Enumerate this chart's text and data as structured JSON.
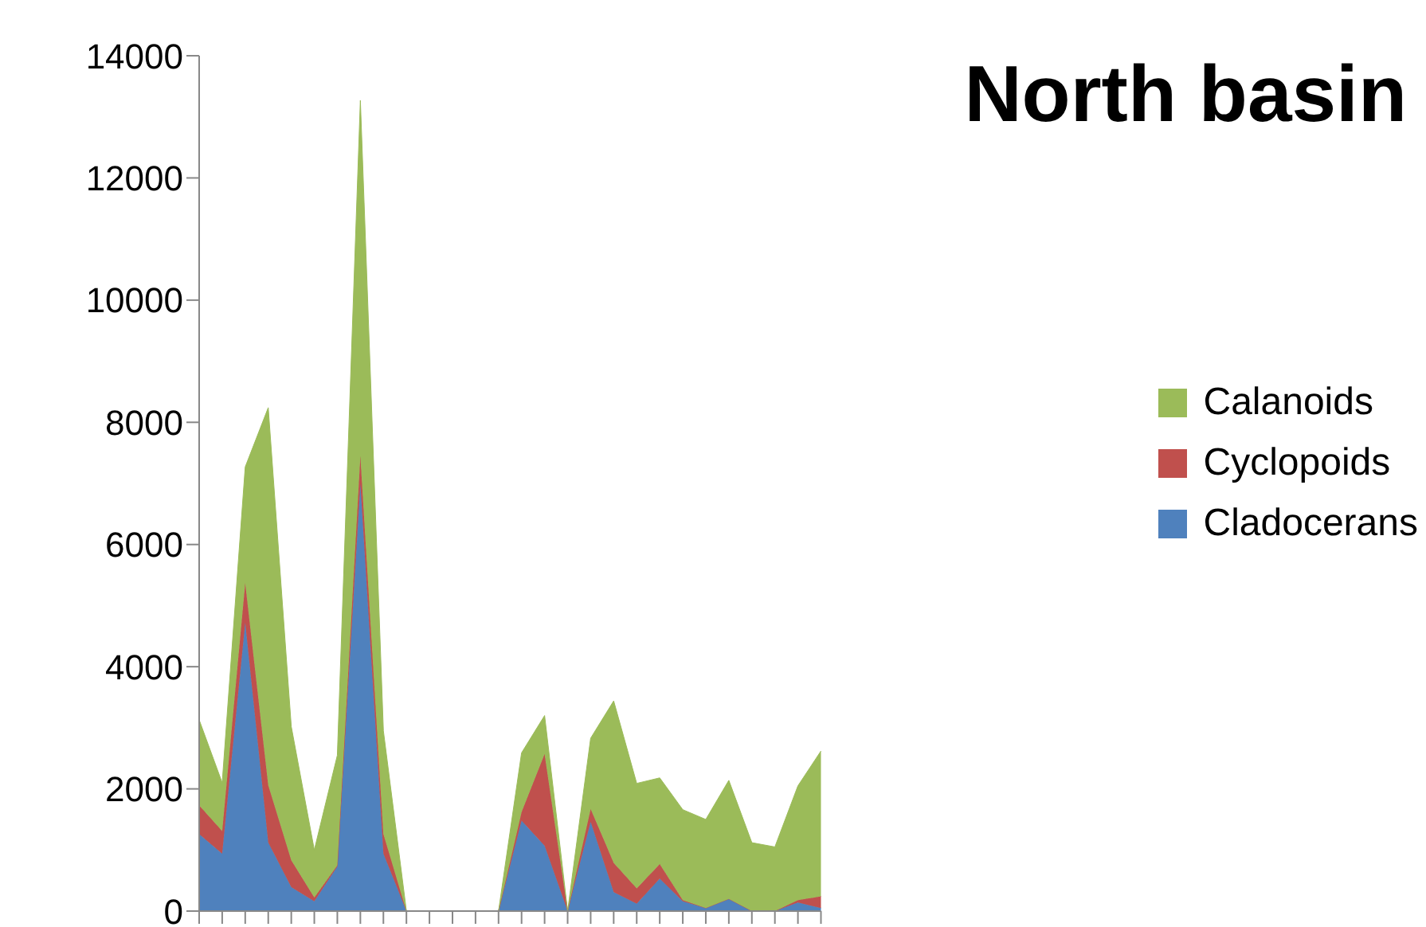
{
  "chart_data": {
    "type": "area",
    "title": "North basin",
    "stacked": true,
    "legend": "right",
    "grid": false,
    "categories": [
      null,
      null,
      null,
      null,
      null,
      null,
      null,
      null,
      null,
      null,
      null,
      null,
      null,
      null,
      null,
      null,
      null,
      null,
      null,
      null,
      null,
      null,
      null,
      null,
      null,
      null,
      null,
      null
    ],
    "ylim": [
      0,
      14000
    ],
    "yticks": [
      0,
      2000,
      4000,
      6000,
      8000,
      10000,
      12000,
      14000
    ],
    "series": [
      {
        "name": "Cladocerans",
        "color": "#4f81bd",
        "values": [
          1260,
          940,
          4720,
          1120,
          390,
          160,
          730,
          6990,
          940,
          0,
          0,
          0,
          0,
          0,
          1480,
          1070,
          0,
          1460,
          310,
          120,
          530,
          160,
          50,
          200,
          0,
          0,
          140,
          50
        ]
      },
      {
        "name": "Cyclopoids",
        "color": "#c0504d",
        "values": [
          470,
          370,
          650,
          940,
          440,
          60,
          20,
          460,
          320,
          0,
          0,
          0,
          0,
          0,
          140,
          1500,
          0,
          210,
          480,
          250,
          240,
          20,
          0,
          0,
          0,
          0,
          40,
          190
        ]
      },
      {
        "name": "Calanoids",
        "color": "#9bbb59",
        "values": [
          1400,
          790,
          1900,
          6180,
          2190,
          780,
          1800,
          5820,
          1690,
          0,
          0,
          0,
          0,
          0,
          970,
          630,
          0,
          1160,
          2650,
          1720,
          1410,
          1480,
          1450,
          1940,
          1120,
          1050,
          1870,
          2380
        ]
      }
    ]
  }
}
